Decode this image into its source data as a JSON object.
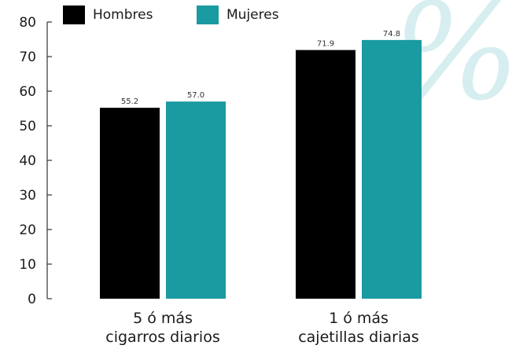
{
  "chart_data": {
    "type": "bar",
    "categories": [
      [
        "5 ó más",
        "cigarros diarios"
      ],
      [
        "1 ó más",
        "cajetillas diarias"
      ]
    ],
    "series": [
      {
        "name": "Hombres",
        "color": "#000000",
        "values": [
          55.2,
          71.9
        ],
        "labels": [
          "55.2",
          "71.9"
        ]
      },
      {
        "name": "Mujeres",
        "color": "#1a9aa1",
        "values": [
          57.0,
          74.8
        ],
        "labels": [
          "57.0",
          "74.8"
        ]
      }
    ],
    "yticks": [
      "0",
      "10",
      "20",
      "30",
      "40",
      "50",
      "60",
      "70",
      "80"
    ],
    "ylim": [
      0,
      80
    ],
    "grid": false,
    "legend_position": "top",
    "watermark": "%",
    "watermark_color": "#d6eef0"
  }
}
